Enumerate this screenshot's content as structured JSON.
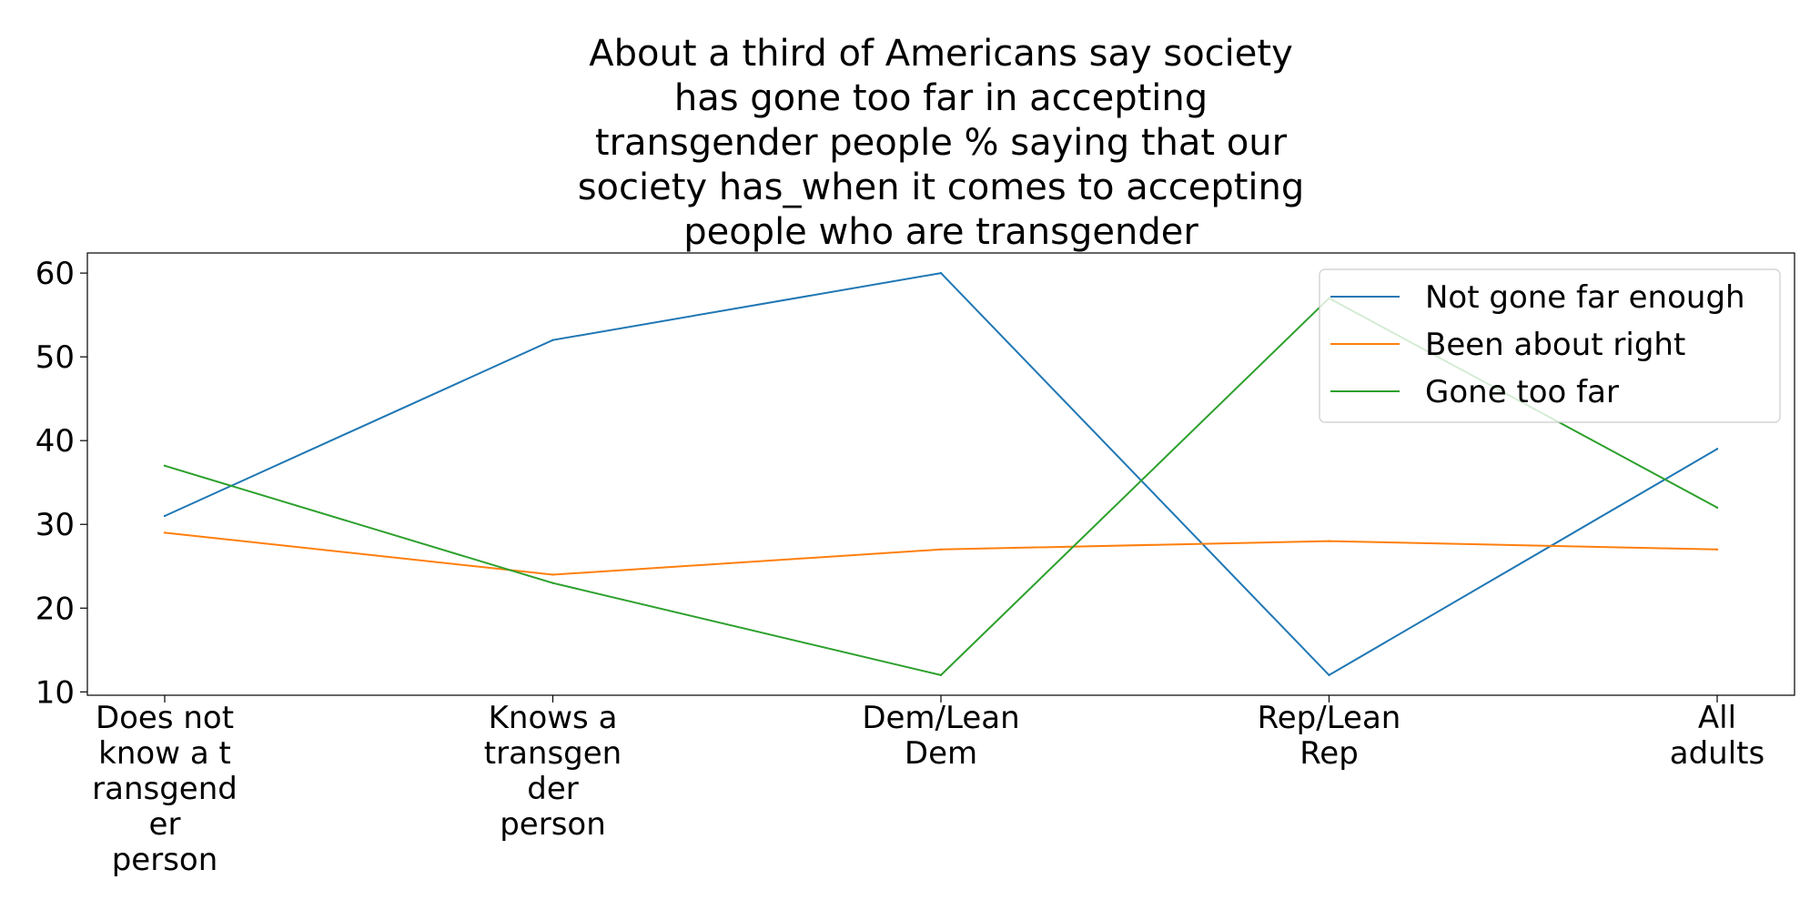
{
  "chart_data": {
    "type": "line",
    "title_lines": [
      "About a third of Americans say society",
      "has gone too far in accepting",
      "transgender people % saying that our",
      "society has_when it comes to accepting",
      "people who are transgender"
    ],
    "categories": [
      [
        "Does not",
        "know a t",
        "ransgend",
        "er",
        "person"
      ],
      [
        "Knows a",
        "transgen",
        "der",
        "person"
      ],
      [
        "Dem/Lean",
        "Dem"
      ],
      [
        "Rep/Lean",
        "Rep"
      ],
      [
        "All",
        "adults"
      ]
    ],
    "series": [
      {
        "name": "Not gone far enough",
        "color": "#1f77b4",
        "values": [
          31,
          52,
          60,
          12,
          39
        ]
      },
      {
        "name": "Been about right",
        "color": "#ff7f0e",
        "values": [
          29,
          24,
          27,
          28,
          27
        ]
      },
      {
        "name": "Gone too far",
        "color": "#2ca02c",
        "values": [
          37,
          23,
          12,
          57,
          32
        ]
      }
    ],
    "yticks": [
      10,
      20,
      30,
      40,
      50,
      60
    ],
    "ylim": [
      9.6,
      62.4
    ],
    "grid": false,
    "legend_position": "top-right"
  }
}
